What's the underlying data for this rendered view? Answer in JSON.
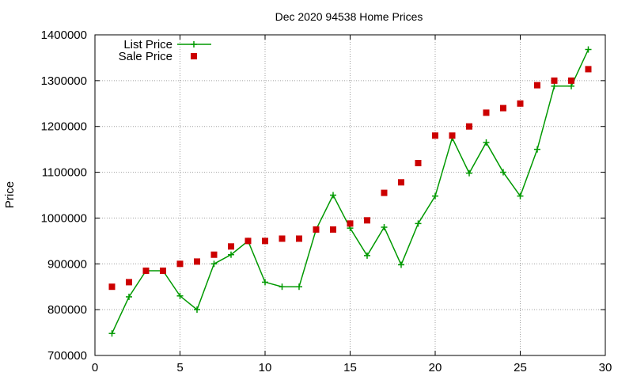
{
  "chart_data": {
    "type": "line",
    "title": "Dec 2020 94538 Home Prices",
    "xlabel": "",
    "ylabel": "Price",
    "xlim": [
      0,
      30
    ],
    "ylim": [
      700000,
      1400000
    ],
    "xticks": [
      0,
      5,
      10,
      15,
      20,
      25,
      30
    ],
    "yticks": [
      700000,
      800000,
      900000,
      1000000,
      1100000,
      1200000,
      1300000,
      1400000
    ],
    "grid": true,
    "legend_position": "top-left",
    "series": [
      {
        "name": "List Price",
        "style": "line-with-plus-markers",
        "color": "#009900",
        "x": [
          1,
          2,
          3,
          4,
          5,
          6,
          7,
          8,
          9,
          10,
          11,
          12,
          13,
          14,
          15,
          16,
          17,
          18,
          19,
          20,
          21,
          22,
          23,
          24,
          25,
          26,
          27,
          28,
          29
        ],
        "y": [
          748000,
          828000,
          885000,
          885000,
          830000,
          800000,
          900000,
          920000,
          950000,
          860000,
          850000,
          850000,
          975000,
          1050000,
          978000,
          918000,
          980000,
          898000,
          988000,
          1048000,
          1175000,
          1098000,
          1165000,
          1100000,
          1048000,
          1150000,
          1288000,
          1288000,
          1368000
        ]
      },
      {
        "name": "Sale Price",
        "style": "square-markers",
        "color": "#cc0000",
        "x": [
          1,
          2,
          3,
          4,
          5,
          6,
          7,
          8,
          9,
          10,
          11,
          12,
          13,
          14,
          15,
          16,
          17,
          18,
          19,
          20,
          21,
          22,
          23,
          24,
          25,
          26,
          27,
          28,
          29
        ],
        "y": [
          850000,
          860000,
          885000,
          885000,
          900000,
          905000,
          920000,
          938000,
          950000,
          950000,
          955000,
          955000,
          975000,
          975000,
          988000,
          995000,
          1055000,
          1078000,
          1120000,
          1180000,
          1180000,
          1200000,
          1230000,
          1240000,
          1250000,
          1290000,
          1300000,
          1300000,
          1325000
        ]
      }
    ]
  }
}
